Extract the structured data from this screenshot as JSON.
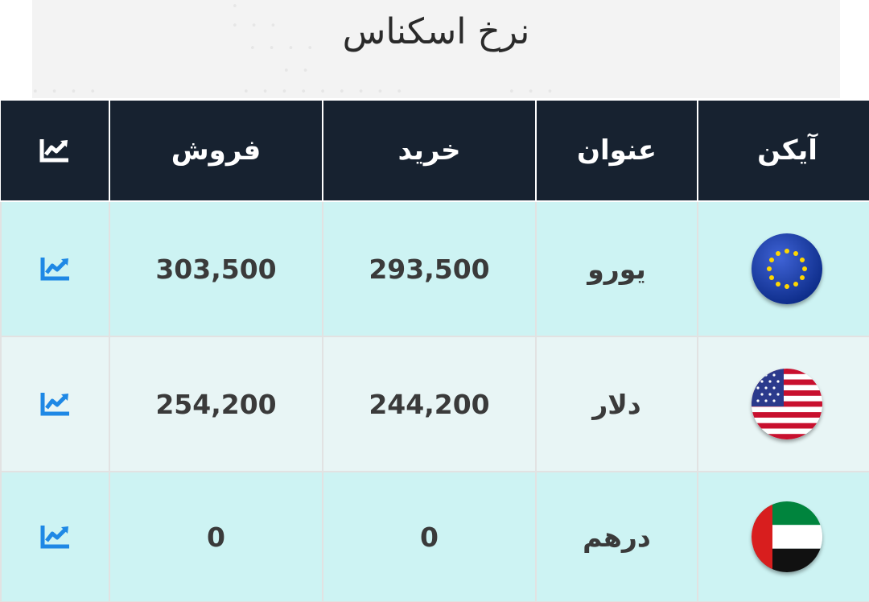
{
  "page": {
    "title": "نرخ اسکناس"
  },
  "table": {
    "headers": {
      "icon": "آیکن",
      "name": "عنوان",
      "buy": "خرید",
      "sell": "فروش",
      "chart_icon": "trend-chart-icon"
    },
    "rows": [
      {
        "flag": "eu-flag-icon",
        "name": "یورو",
        "buy": "293,500",
        "sell": "303,500",
        "chart_icon": "trend-chart-icon"
      },
      {
        "flag": "us-flag-icon",
        "name": "دلار",
        "buy": "244,200",
        "sell": "254,200",
        "chart_icon": "trend-chart-icon"
      },
      {
        "flag": "uae-flag-icon",
        "name": "درهم",
        "buy": "0",
        "sell": "0",
        "chart_icon": "trend-chart-icon"
      }
    ]
  },
  "colors": {
    "header_bg": "#172230",
    "row_cyan": "#cdf3f3",
    "row_light": "#e8f5f5",
    "chart_icon_blue": "#1e88e5"
  }
}
